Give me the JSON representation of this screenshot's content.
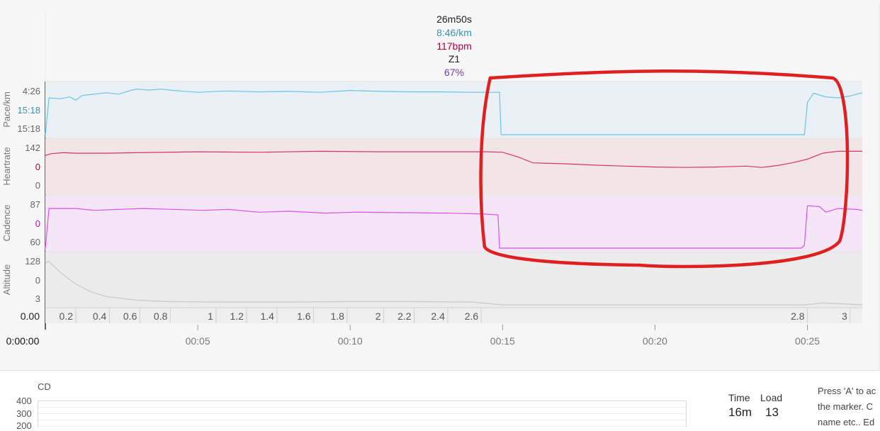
{
  "colors": {
    "pace": "#6cc3e3",
    "pace_fill": "#e9f1f6",
    "pace_label": "#3d8fb5",
    "heartrate": "#d6356a",
    "heartrate_fill": "#f3e4e8",
    "heartrate_label": "#b0003a",
    "cadence": "#e04ef0",
    "cadence_fill": "#f4e6f7",
    "cadence_label": "#d000d0",
    "altitude": "#c8c8c8",
    "altitude_fill": "#ececec",
    "annotation": "#e02020",
    "grid": "#e0e0e0",
    "axis_text": "#666666"
  },
  "hover": {
    "time": "26m50s",
    "pace": "8:46/km",
    "heartrate": "117bpm",
    "zone": "Z1",
    "percent": "67%"
  },
  "chart_data": {
    "type": "line",
    "x_axis": {
      "label": "",
      "unit": "h:mm",
      "range": [
        0,
        26.8
      ],
      "ticks": [
        "0:00:00",
        "00:05",
        "00:10",
        "00:15",
        "00:20",
        "00:25"
      ]
    },
    "distance_axis": {
      "ticks": [
        "0.00",
        "0.2",
        "0.4",
        "0.6",
        "0.8",
        "1",
        "1.2",
        "1.4",
        "1.6",
        "1.8",
        "2",
        "2.2",
        "2.4",
        "2.6",
        "2.8",
        "3"
      ],
      "tick_minutes": [
        0,
        1.0,
        2.1,
        3.1,
        4.1,
        5.6,
        6.6,
        7.6,
        8.8,
        9.9,
        11.1,
        12.1,
        13.2,
        14.3,
        25.0,
        26.4
      ]
    },
    "series": [
      {
        "name": "Pace/km",
        "key": "pace",
        "tick_labels": [
          "4:26",
          "15:18",
          "15:18"
        ],
        "x": [
          0,
          0.12,
          0.5,
          0.8,
          1.0,
          1.2,
          1.6,
          2.0,
          2.4,
          2.8,
          3.0,
          3.4,
          3.8,
          4.2,
          5.0,
          6.0,
          7.0,
          8.0,
          9.0,
          10.0,
          11.0,
          12.0,
          13.0,
          14.0,
          14.9,
          14.95,
          24.9,
          25.0,
          25.2,
          25.6,
          26.0,
          26.4,
          26.8
        ],
        "level": [
          0.0,
          0.8,
          0.78,
          0.82,
          0.75,
          0.85,
          0.88,
          0.91,
          0.88,
          0.96,
          0.99,
          0.97,
          0.99,
          0.96,
          0.92,
          0.95,
          0.93,
          0.94,
          0.92,
          0.96,
          0.94,
          0.93,
          0.93,
          0.92,
          0.92,
          0.0,
          0.0,
          0.7,
          0.9,
          0.82,
          0.8,
          0.84,
          0.91
        ]
      },
      {
        "name": "Heartrate",
        "key": "heartrate",
        "tick_labels": [
          "142",
          "0",
          "0"
        ],
        "x": [
          0,
          0.2,
          0.6,
          1.0,
          2.0,
          3.0,
          5.0,
          7.0,
          9.0,
          11.0,
          13.0,
          14.5,
          15.0,
          15.5,
          16.0,
          17.0,
          18.0,
          19.0,
          20.0,
          21.0,
          22.0,
          23.0,
          23.5,
          24.0,
          24.5,
          25.0,
          25.5,
          26.0,
          26.8
        ],
        "level": [
          0.78,
          0.82,
          0.84,
          0.83,
          0.83,
          0.84,
          0.86,
          0.85,
          0.87,
          0.86,
          0.86,
          0.86,
          0.85,
          0.75,
          0.62,
          0.6,
          0.57,
          0.55,
          0.53,
          0.52,
          0.53,
          0.55,
          0.52,
          0.56,
          0.62,
          0.7,
          0.83,
          0.87,
          0.87
        ]
      },
      {
        "name": "Cadence",
        "key": "cadence",
        "tick_labels": [
          "87",
          "0",
          "60"
        ],
        "x": [
          0,
          0.12,
          1.0,
          1.6,
          3.2,
          5.2,
          6.0,
          7.0,
          8.0,
          9.2,
          10.2,
          13.2,
          14.4,
          14.85,
          14.9,
          24.8,
          24.9,
          25.0,
          25.4,
          25.6,
          26.0,
          26.6,
          26.8
        ],
        "level": [
          0.0,
          0.86,
          0.86,
          0.82,
          0.86,
          0.82,
          0.84,
          0.78,
          0.8,
          0.76,
          0.78,
          0.76,
          0.74,
          0.72,
          0.0,
          0.0,
          0.06,
          0.92,
          0.9,
          0.78,
          0.86,
          0.84,
          0.82
        ]
      },
      {
        "name": "Altitude",
        "key": "altitude",
        "tick_labels": [
          "128",
          "0",
          "3"
        ],
        "x": [
          0,
          0.1,
          0.5,
          1.0,
          1.5,
          2.0,
          3.0,
          4.0,
          6.0,
          8.0,
          10.0,
          12.0,
          14.0,
          15.0,
          20.0,
          24.9,
          25.5,
          26.8
        ],
        "level": [
          0.9,
          0.95,
          0.7,
          0.45,
          0.28,
          0.18,
          0.1,
          0.07,
          0.06,
          0.06,
          0.07,
          0.07,
          0.06,
          0.0,
          0.0,
          0.0,
          0.04,
          0.0
        ]
      }
    ],
    "annotation": {
      "shape": "hand-drawn ellipse",
      "from_minutes": 14.5,
      "to_minutes": 26.2
    }
  },
  "bottom": {
    "cd_label": "CD",
    "mini_ticks": [
      "400",
      "300",
      "200"
    ],
    "time_label": "Time",
    "time_value": "16m",
    "load_label": "Load",
    "load_value": "13",
    "help_lines": [
      "Press 'A' to ac",
      "the marker. C",
      "name etc.. Ed"
    ]
  }
}
